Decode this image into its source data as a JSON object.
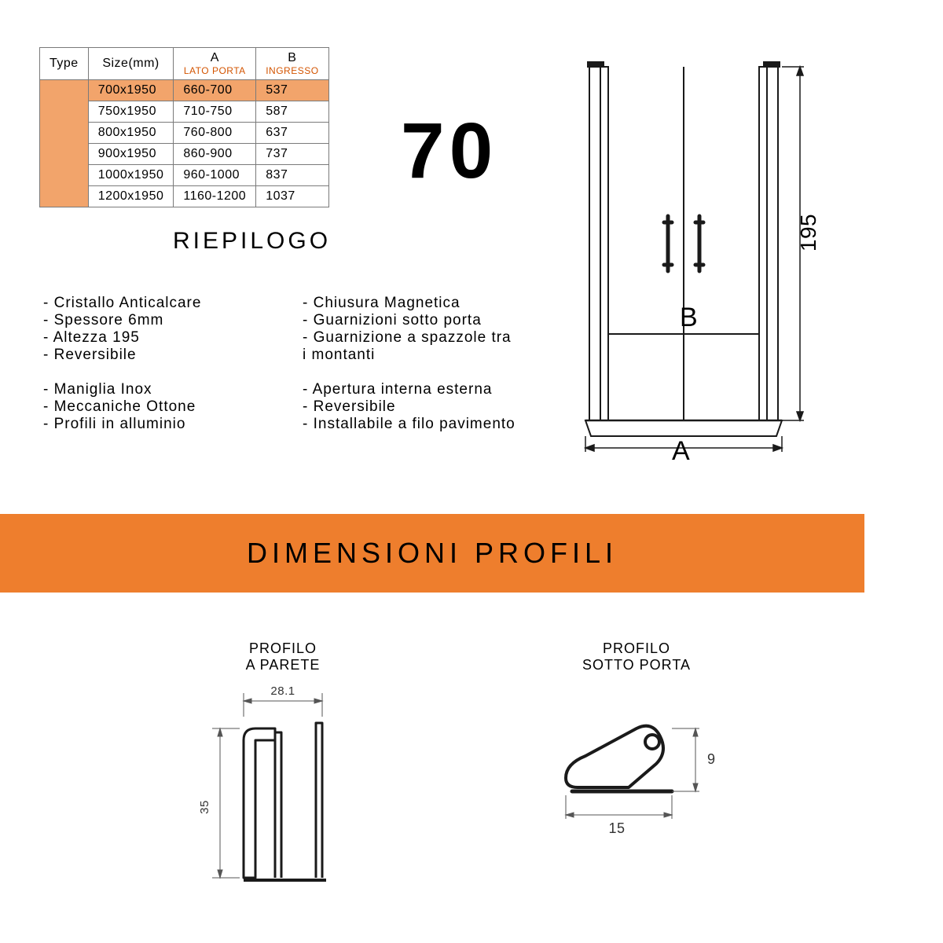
{
  "table": {
    "headers": {
      "type": "Type",
      "size": "Size(mm)",
      "a": "A",
      "a_sub": "LATO PORTA",
      "b": "B",
      "b_sub": "INGRESSO"
    },
    "rows": [
      {
        "size": "700x1950",
        "a": "660-700",
        "b": "537",
        "hl": true
      },
      {
        "size": "750x1950",
        "a": "710-750",
        "b": "587",
        "hl": false
      },
      {
        "size": "800x1950",
        "a": "760-800",
        "b": "637",
        "hl": false
      },
      {
        "size": "900x1950",
        "a": "860-900",
        "b": "737",
        "hl": false
      },
      {
        "size": "1000x1950",
        "a": "960-1000",
        "b": "837",
        "hl": false
      },
      {
        "size": "1200x1950",
        "a": "1160-1200",
        "b": "1037",
        "hl": false
      }
    ]
  },
  "big_number": "70",
  "summary_title": "RIEPILOGO",
  "features": {
    "col1": {
      "g1": [
        "Cristallo Anticalcare",
        "Spessore 6mm",
        "Altezza 195",
        "Reversibile"
      ],
      "g2": [
        "Maniglia Inox",
        "Meccaniche Ottone",
        "Profili in alluminio"
      ]
    },
    "col2": {
      "g1": [
        "Chiusura Magnetica",
        "Guarnizioni sotto porta",
        "Guarnizione a spazzole tra",
        "i montanti"
      ],
      "g2": [
        "Apertura interna esterna",
        "Reversibile",
        "Installabile a filo pavimento"
      ]
    }
  },
  "diagram": {
    "height_label": "195",
    "width_label": "A",
    "opening_label": "B"
  },
  "band_title": "DIMENSIONI PROFILI",
  "profile1": {
    "title": "PROFILO\nA PARETE",
    "w": "28.1",
    "h": "35"
  },
  "profile2": {
    "title": "PROFILO\nSOTTO PORTA",
    "w": "15",
    "h": "9"
  },
  "colors": {
    "accent": "#ee7e2d",
    "hl": "#f2a46b",
    "line": "#1a1a1a"
  }
}
